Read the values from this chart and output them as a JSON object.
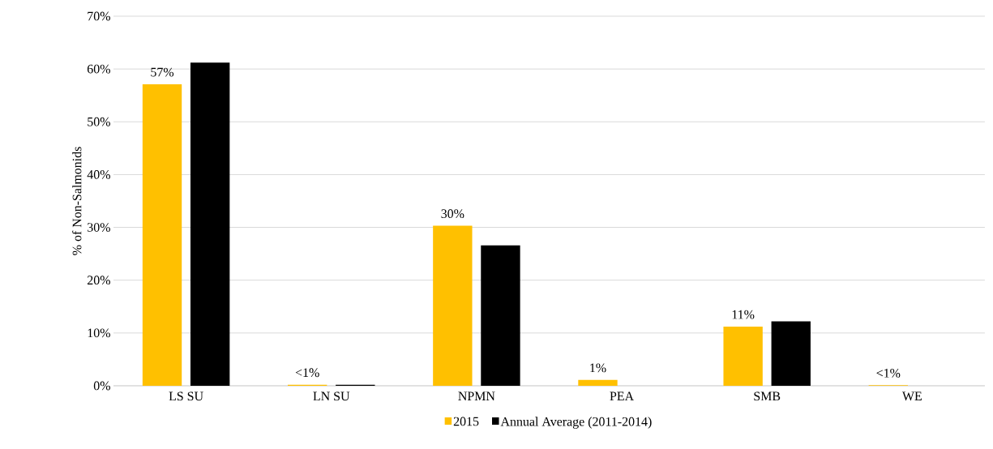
{
  "chart_data": {
    "type": "bar",
    "ylabel": "% of Non-Salmonids",
    "categories": [
      "LS SU",
      "LN SU",
      "NPMN",
      "PEA",
      "SMB",
      "WE"
    ],
    "series": [
      {
        "name": "2015",
        "color": "#ffc000",
        "values": [
          57.1,
          0.2,
          30.3,
          1.1,
          11.2,
          0.1
        ],
        "value_labels": [
          "57%",
          "<1%",
          "30%",
          "1%",
          "11%",
          "<1%"
        ]
      },
      {
        "name": "Annual Average (2011-2014)",
        "color": "#000000",
        "values": [
          61.2,
          0.2,
          26.6,
          0,
          12.2,
          0
        ]
      }
    ],
    "ylim": [
      0,
      70
    ],
    "yticks": [
      {
        "value": 0,
        "label": "0%"
      },
      {
        "value": 10,
        "label": "10%"
      },
      {
        "value": 20,
        "label": "20%"
      },
      {
        "value": 30,
        "label": "30%"
      },
      {
        "value": 40,
        "label": "40%"
      },
      {
        "value": 50,
        "label": "50%"
      },
      {
        "value": 60,
        "label": "60%"
      },
      {
        "value": 70,
        "label": "70%"
      }
    ],
    "grid": "y",
    "legend": "bottom"
  }
}
